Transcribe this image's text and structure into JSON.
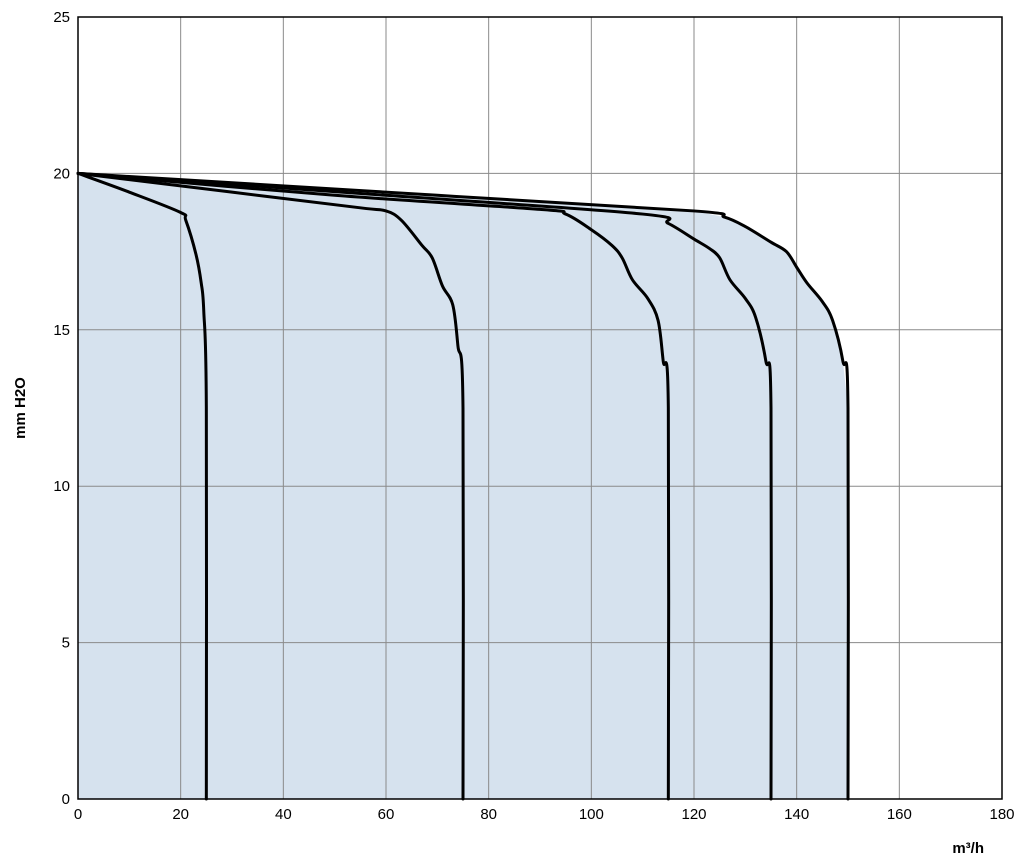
{
  "chart_data": {
    "type": "line",
    "title": "",
    "xlabel": "m³/h",
    "ylabel": "mm H2O",
    "xlim": [
      0,
      180
    ],
    "ylim": [
      0,
      25
    ],
    "xticks": [
      0,
      20,
      40,
      60,
      80,
      100,
      120,
      140,
      160,
      180
    ],
    "yticks": [
      0,
      5,
      10,
      15,
      20,
      25
    ],
    "grid": true,
    "fill_color": "#d6e2ee",
    "line_color": "#000000",
    "series": [
      {
        "x": [
          0,
          10,
          20,
          21,
          23,
          24,
          24.5,
          25,
          25
        ],
        "y": [
          20,
          19.4,
          18.75,
          18.5,
          17.4,
          16.5,
          15.6,
          12.5,
          0
        ]
      },
      {
        "x": [
          0,
          30,
          55,
          60,
          63,
          67,
          69,
          71,
          73,
          74,
          75,
          75
        ],
        "y": [
          20,
          19.4,
          18.9,
          18.8,
          18.5,
          17.7,
          17.3,
          16.4,
          15.8,
          14.5,
          12.5,
          0
        ]
      },
      {
        "x": [
          0,
          50,
          90,
          95,
          100,
          104,
          106,
          108,
          111,
          113,
          114,
          115,
          115
        ],
        "y": [
          20,
          19.3,
          18.85,
          18.7,
          18.2,
          17.7,
          17.3,
          16.6,
          16.0,
          15.3,
          14.0,
          12.5,
          0
        ]
      },
      {
        "x": [
          0,
          60,
          110,
          115,
          120,
          123,
          125,
          127,
          130,
          132,
          134,
          135,
          135
        ],
        "y": [
          20,
          19.3,
          18.7,
          18.4,
          17.9,
          17.6,
          17.3,
          16.6,
          16.0,
          15.4,
          14.0,
          12.5,
          0
        ]
      },
      {
        "x": [
          0,
          70,
          120,
          126,
          130,
          135,
          138,
          140,
          142,
          145,
          147,
          149,
          150,
          150
        ],
        "y": [
          20,
          19.3,
          18.8,
          18.6,
          18.3,
          17.8,
          17.5,
          17.0,
          16.5,
          15.9,
          15.3,
          14.0,
          12.5,
          0
        ]
      }
    ]
  }
}
